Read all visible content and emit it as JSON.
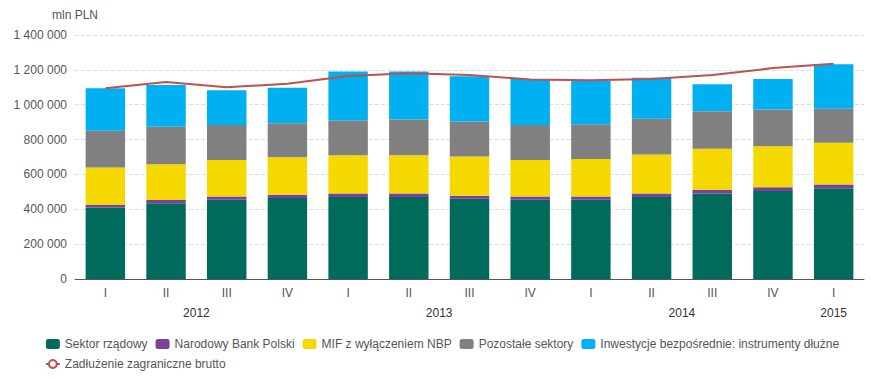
{
  "chart_data": {
    "type": "bar",
    "stacked": true,
    "categories": [
      "I",
      "II",
      "III",
      "IV",
      "I",
      "II",
      "III",
      "IV",
      "I",
      "II",
      "III",
      "IV",
      "I"
    ],
    "series": [
      {
        "name": "Sektor rządowy",
        "color": "#006b5b",
        "values": [
          410000,
          435000,
          455000,
          465000,
          470000,
          470000,
          460000,
          455000,
          455000,
          470000,
          490000,
          505000,
          520000
        ]
      },
      {
        "name": "Narodowy Bank Polski",
        "color": "#7b3f9e",
        "values": [
          15000,
          18000,
          18000,
          18000,
          20000,
          20000,
          18000,
          18000,
          18000,
          20000,
          22000,
          22000,
          22000
        ]
      },
      {
        "name": "MIF z wyłączeniem NBP",
        "color": "#f5d800",
        "values": [
          215000,
          205000,
          210000,
          215000,
          220000,
          220000,
          225000,
          210000,
          215000,
          225000,
          235000,
          235000,
          240000
        ]
      },
      {
        "name": "Pozostałe sektory",
        "color": "#808080",
        "values": [
          210000,
          215000,
          200000,
          195000,
          200000,
          205000,
          200000,
          200000,
          200000,
          205000,
          215000,
          210000,
          195000
        ]
      },
      {
        "name": "Inwestycje bezpośrednie: instrumenty dłużne",
        "color": "#00b0f0",
        "values": [
          245000,
          240000,
          200000,
          205000,
          280000,
          275000,
          260000,
          265000,
          250000,
          235000,
          155000,
          175000,
          255000
        ]
      },
      {
        "name": "Zadłużenie zagraniczne brutto",
        "type": "line",
        "color": "#c0504d",
        "values": [
          1095000,
          1130000,
          1100000,
          1120000,
          1165000,
          1180000,
          1170000,
          1145000,
          1140000,
          1148000,
          1170000,
          1210000,
          1235000
        ]
      }
    ],
    "ylabel": "mln PLN",
    "ylim": [
      0,
      1400000
    ],
    "yticks": [
      0,
      {
        "value": 200000,
        "label": "200 000"
      },
      {
        "value": 400000,
        "label": "400 000"
      },
      {
        "value": 600000,
        "label": "600 000"
      },
      {
        "value": 800000,
        "label": "800 000"
      },
      {
        "value": 1000000,
        "label": "1 000 000"
      },
      {
        "value": 1200000,
        "label": "1 200 000"
      },
      {
        "value": 1400000,
        "label": "1 400 000"
      }
    ],
    "grid": true,
    "legend": "bottom",
    "annotations": [
      {
        "text": "2012",
        "x": 1.5
      },
      {
        "text": "2013",
        "x": 5.5
      },
      {
        "text": "2014",
        "x": 9.5
      },
      {
        "text": "2015",
        "x": 12.0
      }
    ]
  }
}
